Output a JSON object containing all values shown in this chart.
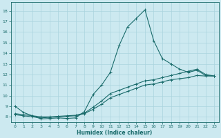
{
  "xlabel": "Humidex (Indice chaleur)",
  "bg_color": "#cce9f0",
  "grid_color": "#aad4de",
  "line_color": "#1a6b6b",
  "xlim": [
    -0.5,
    23.5
  ],
  "ylim": [
    7.5,
    18.8
  ],
  "xticks": [
    0,
    1,
    2,
    3,
    4,
    5,
    6,
    7,
    8,
    9,
    10,
    11,
    12,
    13,
    14,
    15,
    16,
    17,
    18,
    19,
    20,
    21,
    22,
    23
  ],
  "yticks": [
    8,
    9,
    10,
    11,
    12,
    13,
    14,
    15,
    16,
    17,
    18
  ],
  "series1_x": [
    0,
    1,
    2,
    3,
    4,
    5,
    6,
    7,
    8,
    9,
    10,
    11,
    12,
    13,
    14,
    15,
    16,
    17,
    18,
    19,
    20,
    21,
    22,
    23
  ],
  "series1_y": [
    9.0,
    8.4,
    8.1,
    7.8,
    7.85,
    7.9,
    7.85,
    7.9,
    8.5,
    10.1,
    11.0,
    12.2,
    14.7,
    16.5,
    17.3,
    18.1,
    15.2,
    13.5,
    13.0,
    12.5,
    12.2,
    12.4,
    11.9,
    11.85
  ],
  "series2_x": [
    0,
    1,
    2,
    3,
    4,
    5,
    6,
    7,
    8,
    9,
    10,
    11,
    12,
    13,
    14,
    15,
    16,
    17,
    18,
    19,
    20,
    21,
    22,
    23
  ],
  "series2_y": [
    8.2,
    8.1,
    8.0,
    7.9,
    7.95,
    8.0,
    8.05,
    8.1,
    8.3,
    8.7,
    9.2,
    9.8,
    10.1,
    10.4,
    10.7,
    11.0,
    11.1,
    11.3,
    11.5,
    11.6,
    11.7,
    11.9,
    11.85,
    11.85
  ],
  "series3_x": [
    0,
    1,
    2,
    3,
    4,
    5,
    6,
    7,
    8,
    9,
    10,
    11,
    12,
    13,
    14,
    15,
    16,
    17,
    18,
    19,
    20,
    21,
    22,
    23
  ],
  "series3_y": [
    8.3,
    8.2,
    8.1,
    8.0,
    8.0,
    8.05,
    8.1,
    8.15,
    8.35,
    8.9,
    9.5,
    10.2,
    10.5,
    10.8,
    11.1,
    11.4,
    11.5,
    11.7,
    11.9,
    12.1,
    12.3,
    12.5,
    12.0,
    11.85
  ]
}
